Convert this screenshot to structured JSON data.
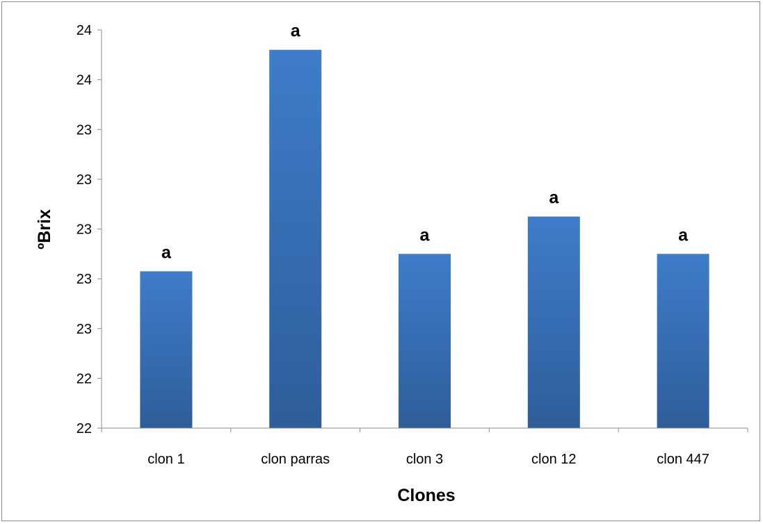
{
  "chart_data": {
    "type": "bar",
    "categories": [
      "clon 1",
      "clon parras",
      "clon 3",
      "clon 12",
      "clon 447"
    ],
    "values": [
      22.83,
      23.72,
      22.9,
      23.05,
      22.9
    ],
    "data_labels": [
      "a",
      "a",
      "a",
      "a",
      "a"
    ],
    "xlabel": "Clones",
    "ylabel": "ºBrix",
    "ylim": [
      22.2,
      23.8
    ],
    "yticks": [
      22.2,
      22.4,
      22.6,
      22.8,
      23.0,
      23.2,
      23.4,
      23.6,
      23.8
    ],
    "ytick_labels": [
      "22",
      "22",
      "23",
      "23",
      "23",
      "23",
      "23",
      "24",
      "24"
    ],
    "grid": false,
    "legend": "none",
    "colors": {
      "bar_top": "#3e7dc9",
      "bar_bottom": "#2f5d9a",
      "axis": "#8c8c8c"
    }
  }
}
